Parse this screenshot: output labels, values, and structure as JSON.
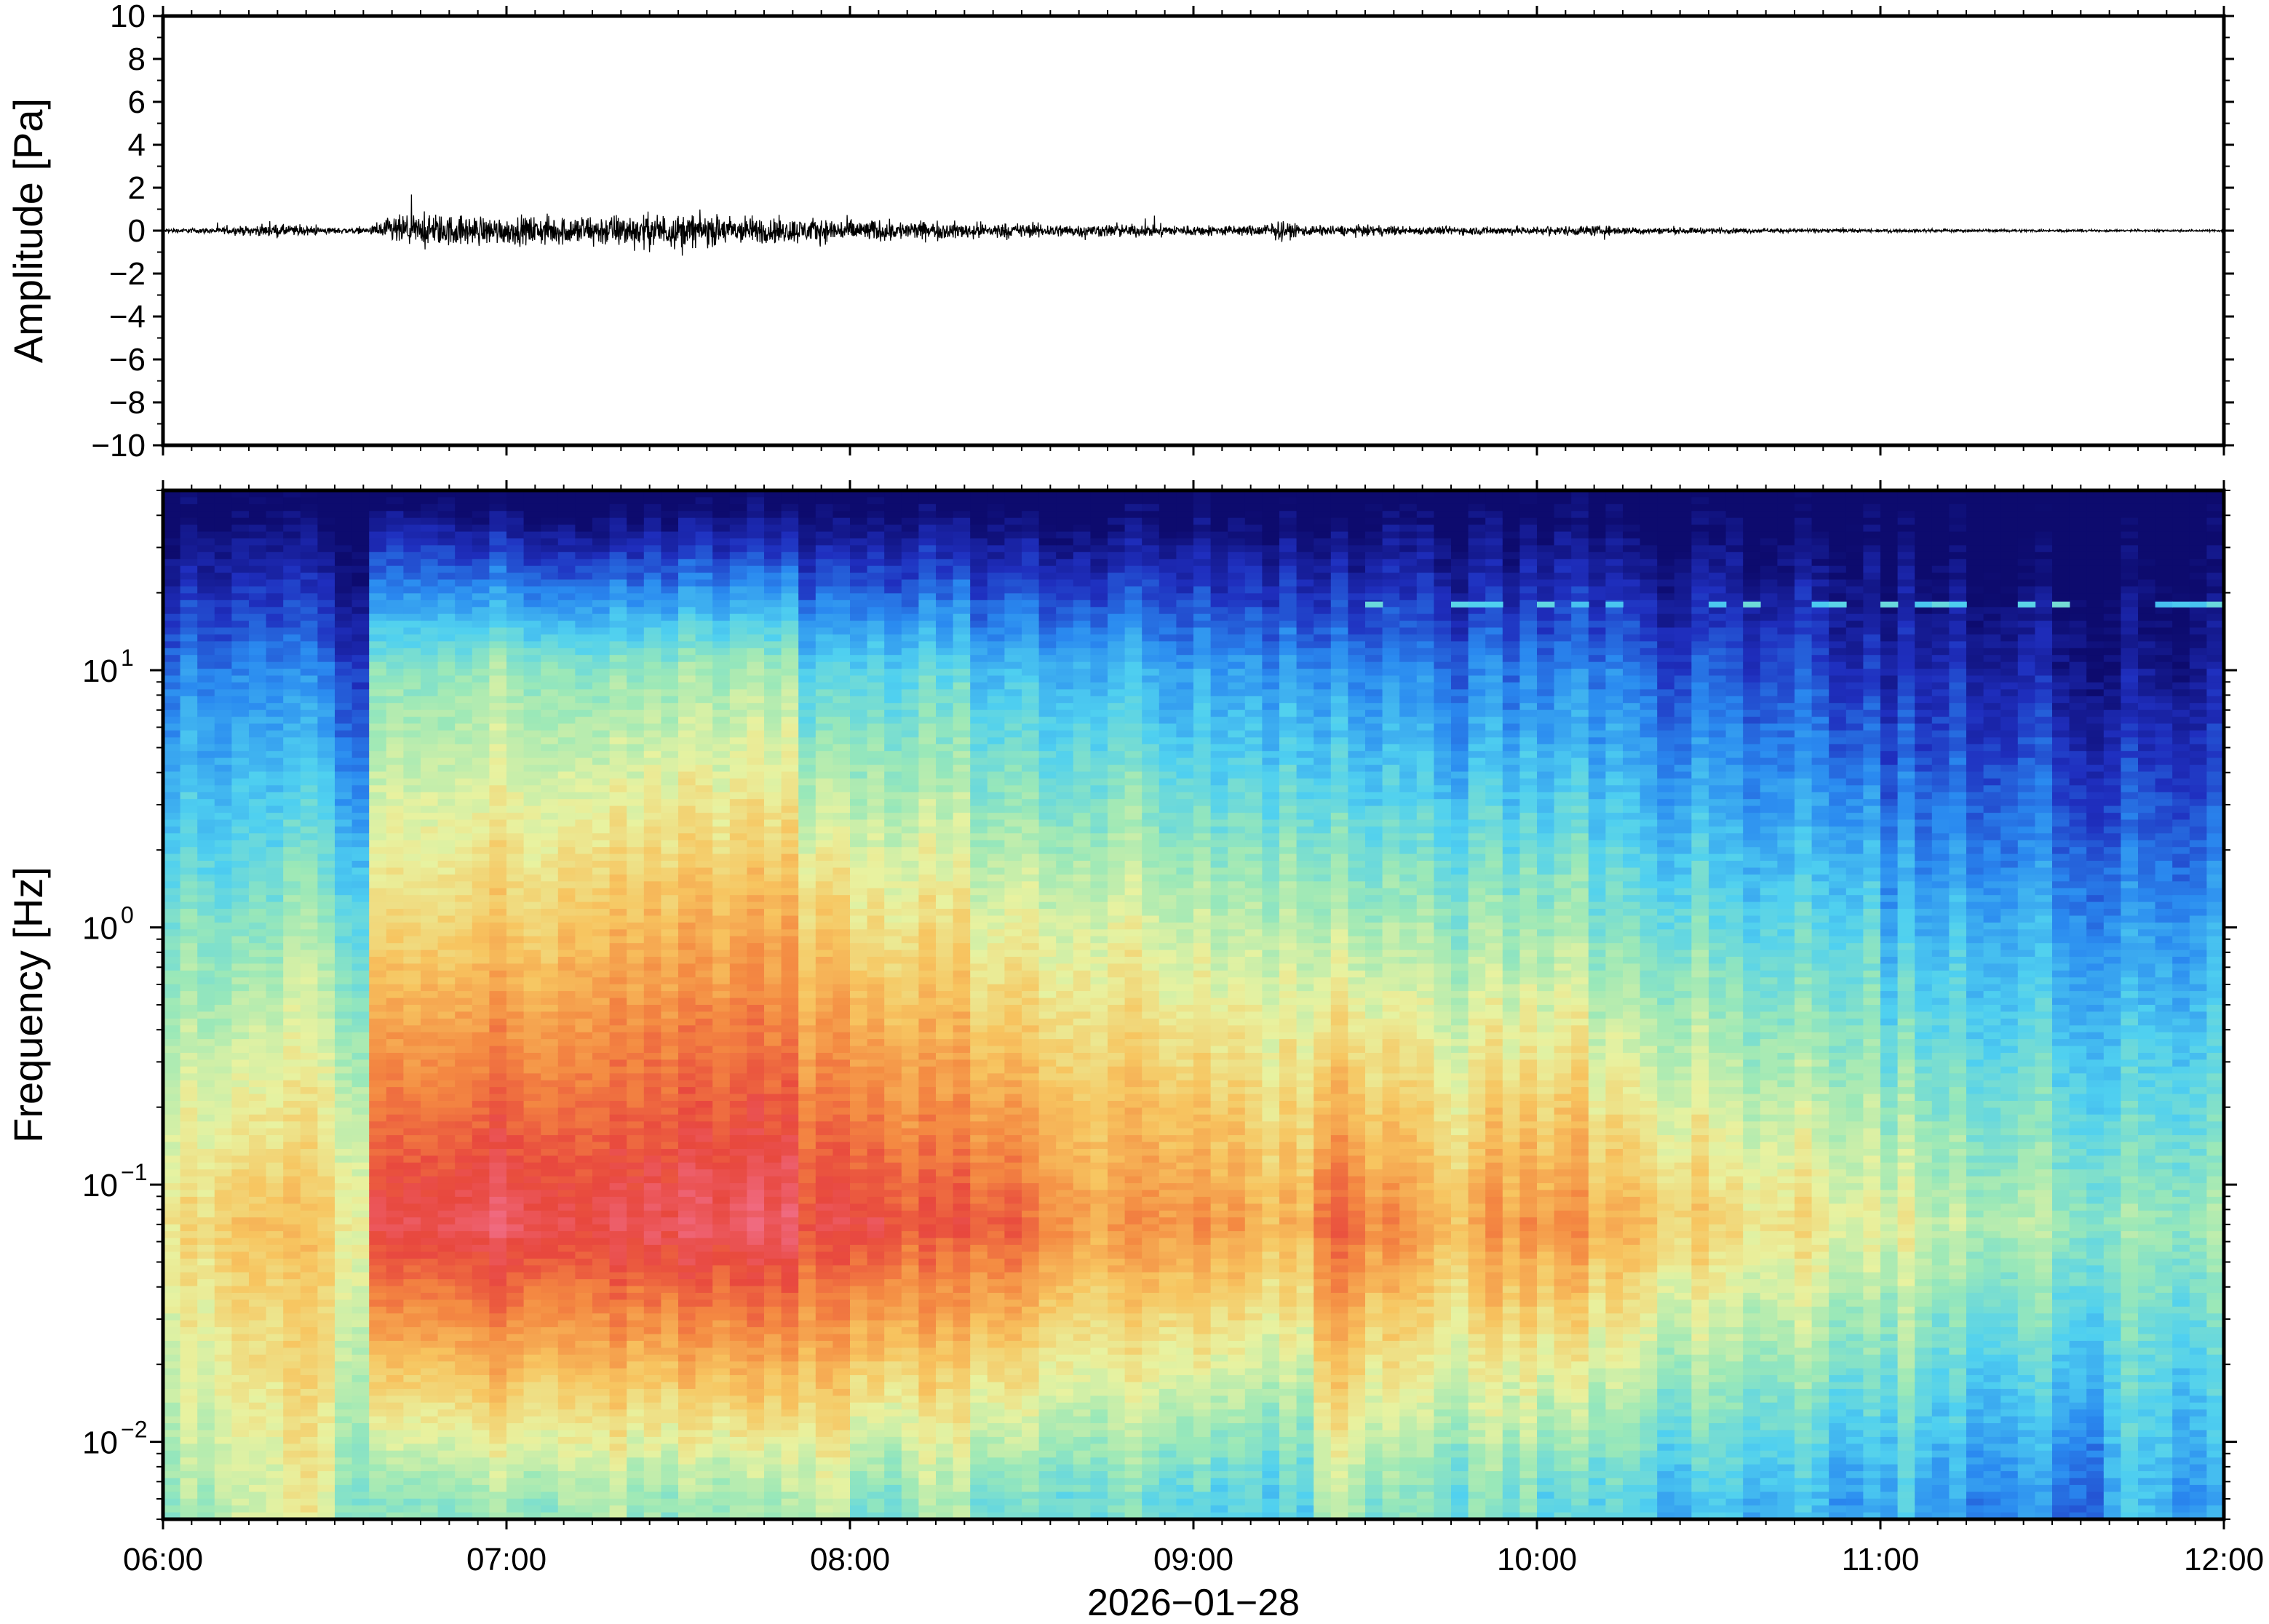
{
  "chart_data": [
    {
      "type": "line",
      "panel": "waveform",
      "ylabel": "Amplitude [Pa]",
      "ylim": [
        -10,
        10
      ],
      "yticks": [
        "10",
        "8",
        "6",
        "4",
        "2",
        "0",
        "−2",
        "−4",
        "−6",
        "−8",
        "−10"
      ],
      "ytick_values": [
        10,
        8,
        6,
        4,
        2,
        0,
        -2,
        -4,
        -6,
        -8,
        -10
      ],
      "x_range": [
        "06:00",
        "12:00"
      ],
      "envelope": {
        "x": [
          "06:00",
          "06:10",
          "06:20",
          "06:30",
          "06:36",
          "06:40",
          "06:50",
          "07:00",
          "07:10",
          "07:20",
          "07:30",
          "07:40",
          "07:50",
          "08:00",
          "08:10",
          "08:20",
          "08:30",
          "08:40",
          "08:50",
          "09:00",
          "09:10",
          "09:15",
          "09:20",
          "09:30",
          "09:40",
          "09:50",
          "10:00",
          "10:10",
          "10:20",
          "10:30",
          "10:40",
          "10:50",
          "11:00",
          "11:10",
          "11:20",
          "11:30",
          "11:40",
          "11:50",
          "12:00"
        ],
        "amplitude": [
          0.2,
          0.3,
          0.6,
          0.3,
          0.3,
          1.4,
          1.5,
          1.3,
          1.4,
          1.6,
          1.6,
          1.4,
          1.2,
          1.1,
          0.9,
          0.8,
          0.7,
          0.6,
          0.6,
          0.5,
          0.5,
          0.9,
          0.5,
          0.5,
          0.4,
          0.4,
          0.4,
          0.5,
          0.3,
          0.3,
          0.2,
          0.2,
          0.15,
          0.15,
          0.12,
          0.12,
          0.1,
          0.1,
          0.1
        ]
      }
    },
    {
      "type": "heatmap",
      "panel": "spectrogram",
      "ylabel": "Frequency [Hz]",
      "yscale": "log",
      "ylim": [
        0.005,
        50
      ],
      "yticks": [
        "10",
        "10",
        "10",
        "10"
      ],
      "ytick_exponents": [
        "1",
        "0",
        "−1",
        "−2"
      ],
      "ytick_values": [
        10,
        1,
        0.1,
        0.01
      ],
      "xlabel": "2026−01−28",
      "xticks": [
        "06:00",
        "07:00",
        "08:00",
        "09:00",
        "10:00",
        "11:00",
        "12:00"
      ],
      "colormap": [
        "#0d0b6e",
        "#1f2fbf",
        "#2a8af0",
        "#4fd0f0",
        "#9ae8b8",
        "#e8f2a0",
        "#f7c560",
        "#f48a42",
        "#e8483e",
        "#f06a80"
      ],
      "time_columns": [
        "06:00",
        "06:10",
        "06:20",
        "06:30",
        "06:37",
        "06:50",
        "07:00",
        "07:10",
        "07:20",
        "07:30",
        "07:40",
        "07:50",
        "08:00",
        "08:10",
        "08:20",
        "08:30",
        "08:40",
        "08:50",
        "09:00",
        "09:10",
        "09:20",
        "09:30",
        "09:40",
        "09:50",
        "10:00",
        "10:10",
        "10:20",
        "10:30",
        "10:40",
        "10:50",
        "11:00",
        "11:10",
        "11:20",
        "11:30",
        "11:40",
        "11:50",
        "12:00"
      ],
      "relative_power": {
        "low_0.01Hz": [
          0.45,
          0.5,
          0.55,
          0.45,
          0.4,
          0.45,
          0.45,
          0.5,
          0.45,
          0.45,
          0.45,
          0.5,
          0.4,
          0.45,
          0.4,
          0.4,
          0.4,
          0.35,
          0.35,
          0.35,
          0.5,
          0.4,
          0.4,
          0.4,
          0.35,
          0.35,
          0.3,
          0.3,
          0.3,
          0.25,
          0.3,
          0.25,
          0.25,
          0.2,
          0.3,
          0.25,
          0.3
        ],
        "peak_0.07Hz": [
          0.6,
          0.65,
          0.65,
          0.6,
          0.9,
          0.95,
          0.95,
          0.95,
          0.95,
          0.95,
          0.95,
          0.9,
          0.9,
          0.85,
          0.85,
          0.8,
          0.75,
          0.75,
          0.75,
          0.7,
          0.85,
          0.75,
          0.7,
          0.75,
          0.75,
          0.7,
          0.65,
          0.6,
          0.6,
          0.55,
          0.55,
          0.5,
          0.5,
          0.45,
          0.45,
          0.45,
          0.45
        ],
        "mid_1Hz": [
          0.4,
          0.4,
          0.45,
          0.4,
          0.6,
          0.65,
          0.65,
          0.7,
          0.7,
          0.7,
          0.7,
          0.65,
          0.6,
          0.6,
          0.55,
          0.55,
          0.55,
          0.5,
          0.5,
          0.5,
          0.5,
          0.45,
          0.45,
          0.45,
          0.45,
          0.4,
          0.4,
          0.35,
          0.35,
          0.35,
          0.3,
          0.3,
          0.3,
          0.25,
          0.25,
          0.25,
          0.25
        ],
        "high_10Hz": [
          0.2,
          0.2,
          0.2,
          0.15,
          0.4,
          0.45,
          0.45,
          0.45,
          0.45,
          0.45,
          0.45,
          0.35,
          0.35,
          0.35,
          0.3,
          0.3,
          0.3,
          0.25,
          0.25,
          0.25,
          0.25,
          0.2,
          0.2,
          0.2,
          0.2,
          0.2,
          0.15,
          0.15,
          0.15,
          0.1,
          0.1,
          0.1,
          0.1,
          0.05,
          0.05,
          0.05,
          0.05
        ]
      },
      "narrowband_line_hz": 18
    }
  ]
}
